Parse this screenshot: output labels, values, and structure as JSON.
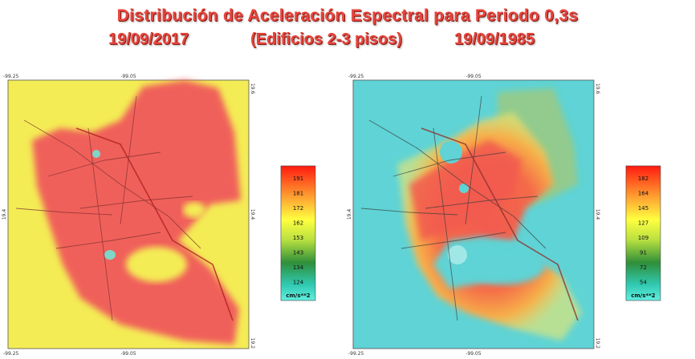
{
  "title": "Distribución de Aceleración Espectral para Periodo 0,3s",
  "subtitle": {
    "left_date": "19/09/2017",
    "building": "(Edificios 2-3 pisos)",
    "right_date": "19/09/1985"
  },
  "maps": [
    {
      "coords": {
        "top_left": "-99.25",
        "top_mid": "-99.05",
        "right_top": "19.6",
        "left_mid": "19.4",
        "right_mid": "19.4",
        "bottom_left": "-99.25",
        "bottom_mid": "-99.05",
        "right_bottom": "19.2"
      },
      "colorbar": {
        "labels": [
          "191",
          "181",
          "172",
          "162",
          "153",
          "143",
          "134",
          "124"
        ],
        "unit": "cm/s**2"
      }
    },
    {
      "coords": {
        "top_left": "-99.25",
        "top_mid": "-99.05",
        "right_top": "19.6",
        "left_mid": "19.4",
        "right_mid": "19.4",
        "bottom_left": "-99.25",
        "bottom_mid": "-99.05",
        "right_bottom": "19.2"
      },
      "colorbar": {
        "labels": [
          "182",
          "164",
          "145",
          "127",
          "109",
          "91",
          "72",
          "54"
        ],
        "unit": "cm/s**2"
      }
    }
  ]
}
